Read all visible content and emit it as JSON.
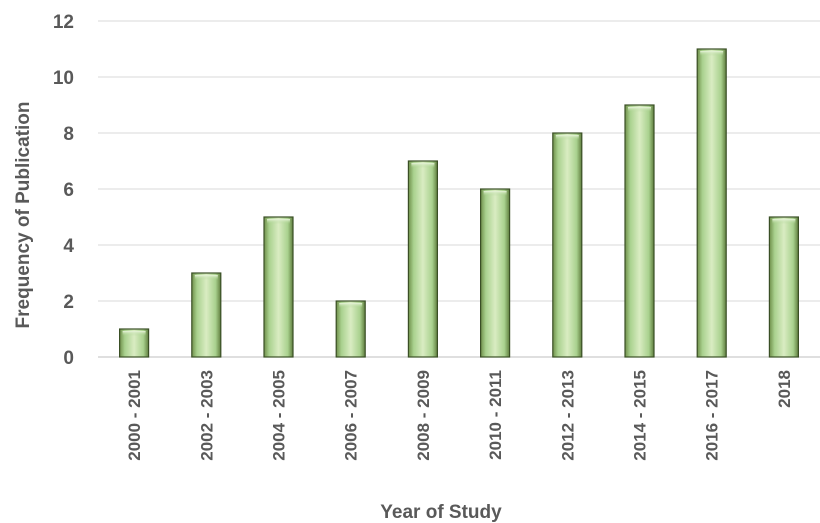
{
  "chart_data": {
    "type": "bar",
    "categories": [
      "2000 - 2001",
      "2002 - 2003",
      "2004 - 2005",
      "2006 - 2007",
      "2008 - 2009",
      "2010 - 2011",
      "2012 - 2013",
      "2014 - 2015",
      "2016 - 2017",
      "2018"
    ],
    "values": [
      1,
      3,
      5,
      2,
      7,
      6,
      8,
      9,
      11,
      5
    ],
    "xlabel": "Year of Study",
    "ylabel": "Frequency of Publication",
    "ylim": [
      0,
      12
    ],
    "yticks": [
      0,
      2,
      4,
      6,
      8,
      10,
      12
    ],
    "grid": true,
    "legend": "none",
    "colors": {
      "bar_light": "#d9ecc2",
      "bar_mid": "#a9d18e",
      "bar_dark": "#5f7d3e",
      "bar_edge": "#3a4f25",
      "grid": "#d9d9d9",
      "text": "#595959"
    }
  }
}
